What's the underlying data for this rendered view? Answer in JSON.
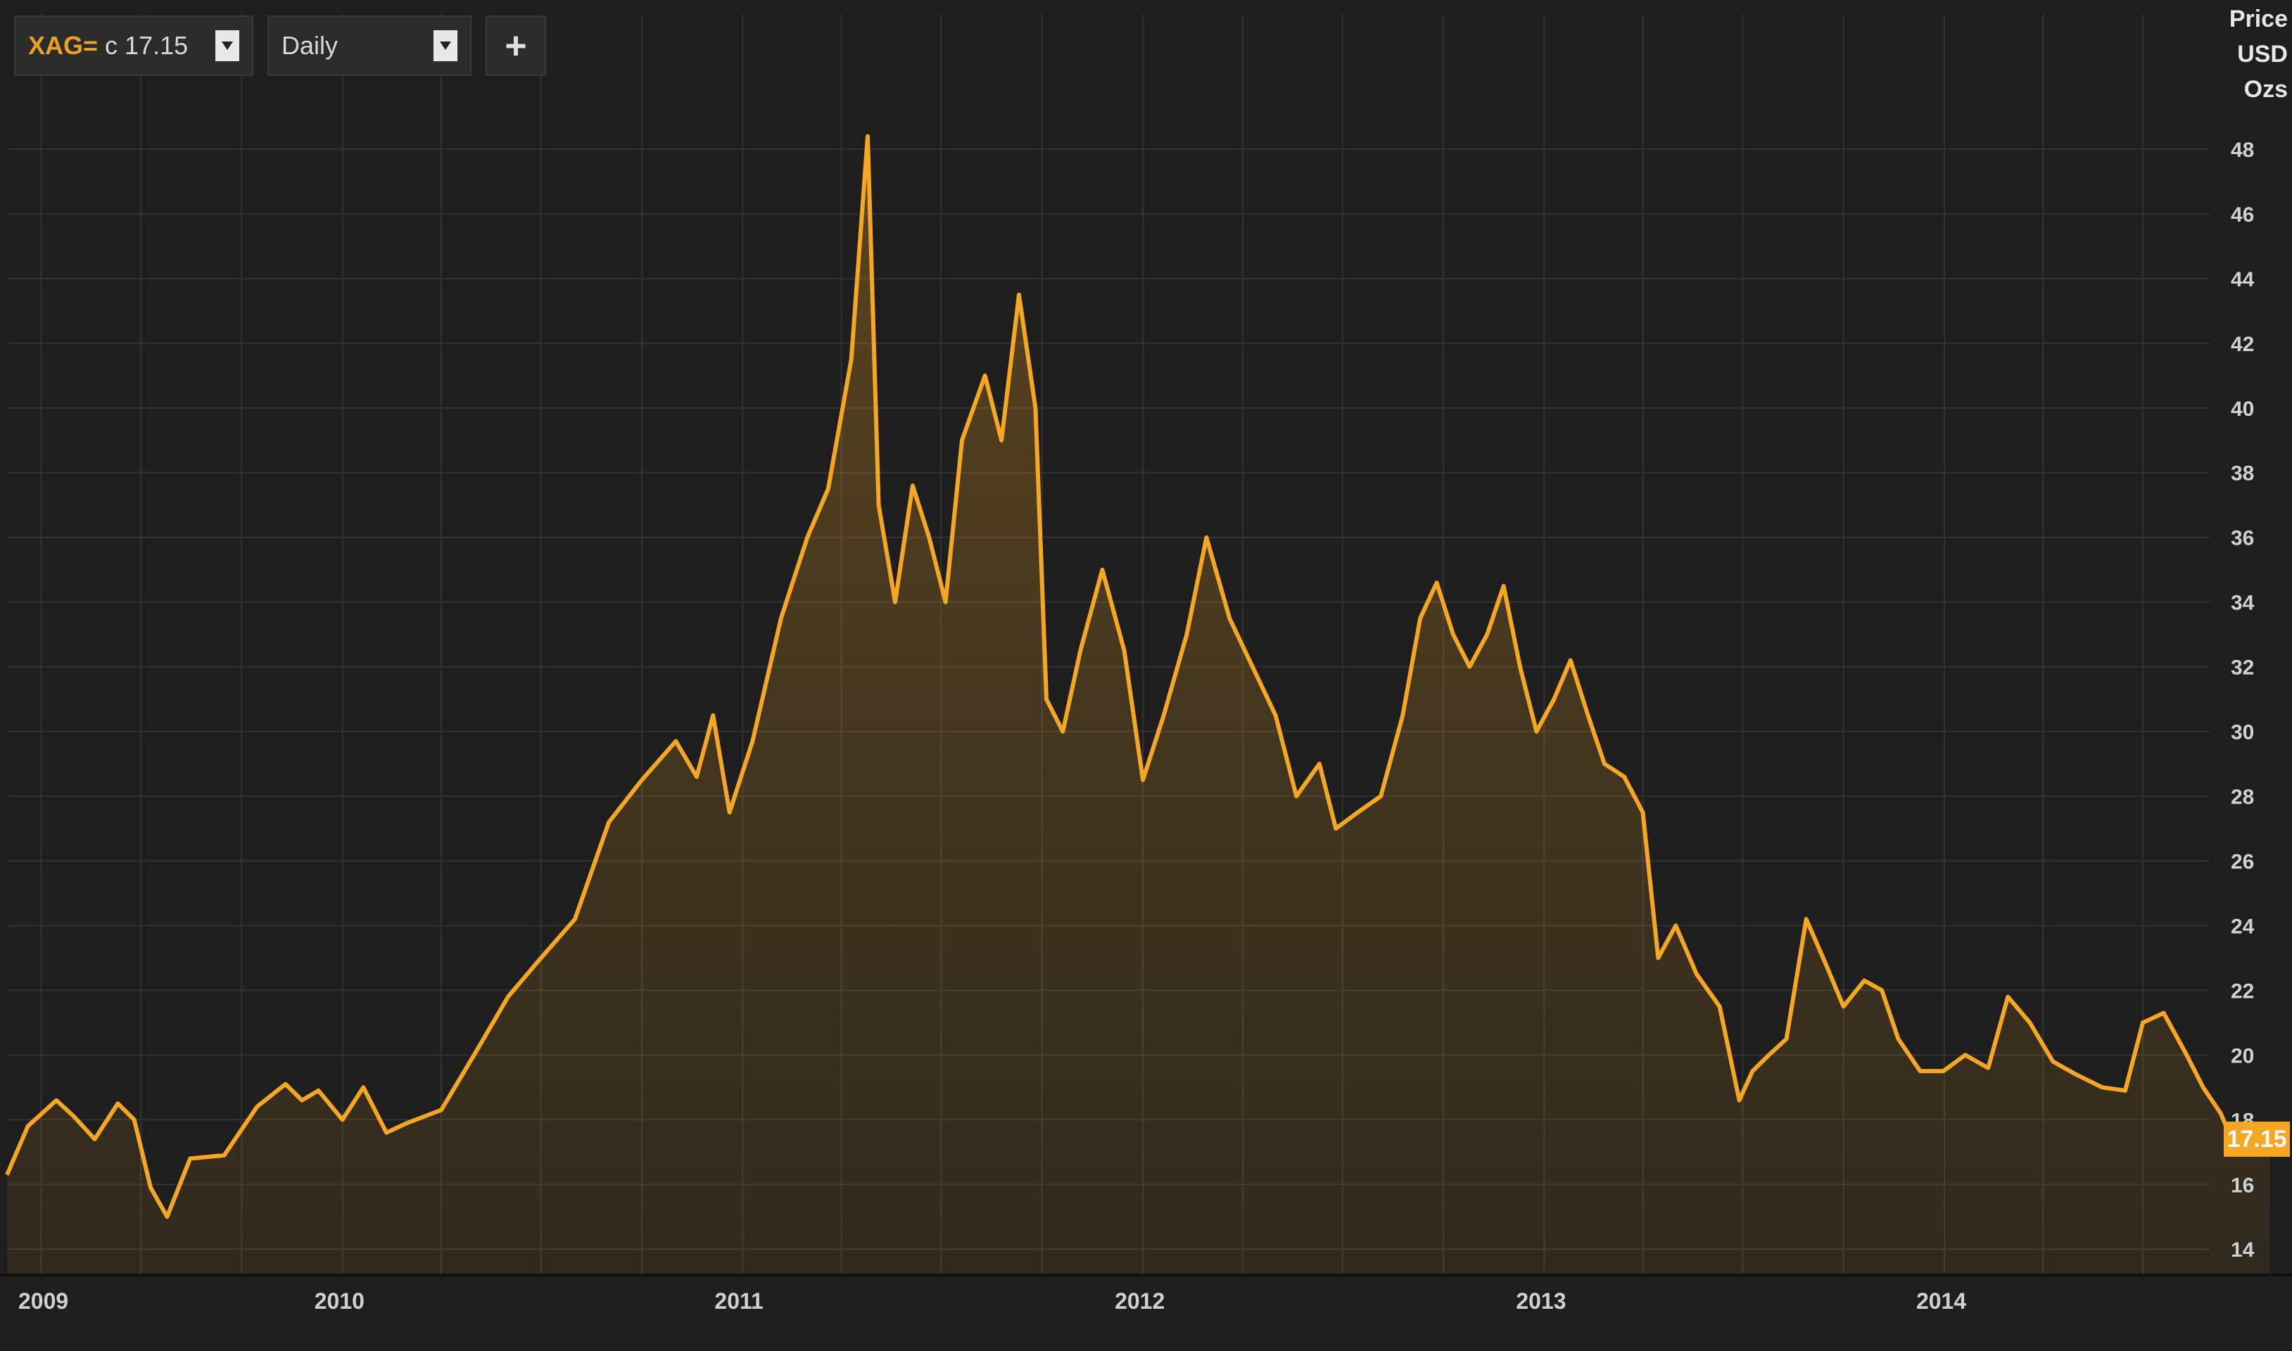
{
  "toolbar": {
    "instrument": "XAG=",
    "instrument_value": "c 17.15",
    "interval": "Daily",
    "add_label": "+"
  },
  "axis_unit": [
    "Price",
    "USD",
    "Ozs"
  ],
  "last_price_label": "17.15",
  "colors": {
    "line": "#f5a623",
    "background": "#1e1e1e",
    "grid": "#3a3a3a",
    "last_tag": "#f5a623"
  },
  "chart_data": {
    "type": "area",
    "title": "",
    "xlabel": "",
    "ylabel": "Price USD Ozs",
    "x_tick_labels": [
      "2009",
      "2010",
      "2011",
      "2012",
      "2013",
      "2014"
    ],
    "y_tick_labels": [
      14,
      16,
      18,
      20,
      22,
      24,
      26,
      28,
      30,
      32,
      34,
      36,
      38,
      40,
      42,
      44,
      46,
      48
    ],
    "xlim": [
      "2009-03-01",
      "2014-08-31"
    ],
    "ylim": [
      13.2,
      50
    ],
    "grid": true,
    "legend": "none",
    "series": [
      {
        "name": "XAG=",
        "points": [
          [
            "2009-03-01",
            16.3
          ],
          [
            "2009-03-20",
            17.8
          ],
          [
            "2009-04-15",
            18.6
          ],
          [
            "2009-05-01",
            18.1
          ],
          [
            "2009-05-20",
            17.4
          ],
          [
            "2009-06-10",
            18.5
          ],
          [
            "2009-06-25",
            18.0
          ],
          [
            "2009-07-10",
            15.9
          ],
          [
            "2009-07-25",
            15.0
          ],
          [
            "2009-08-15",
            16.8
          ],
          [
            "2009-09-15",
            16.9
          ],
          [
            "2009-10-15",
            18.4
          ],
          [
            "2009-11-10",
            19.1
          ],
          [
            "2009-11-25",
            18.6
          ],
          [
            "2009-12-10",
            18.9
          ],
          [
            "2010-01-01",
            18.0
          ],
          [
            "2010-01-20",
            19.0
          ],
          [
            "2010-02-10",
            17.6
          ],
          [
            "2010-03-01",
            17.9
          ],
          [
            "2010-04-01",
            18.3
          ],
          [
            "2010-05-01",
            20.0
          ],
          [
            "2010-06-01",
            21.8
          ],
          [
            "2010-07-01",
            23.0
          ],
          [
            "2010-08-01",
            24.2
          ],
          [
            "2010-09-01",
            27.2
          ],
          [
            "2010-10-01",
            28.5
          ],
          [
            "2010-11-01",
            29.7
          ],
          [
            "2010-11-20",
            28.6
          ],
          [
            "2010-12-05",
            30.5
          ],
          [
            "2010-12-20",
            27.5
          ],
          [
            "2011-01-10",
            29.7
          ],
          [
            "2011-02-05",
            33.5
          ],
          [
            "2011-03-01",
            36.0
          ],
          [
            "2011-03-20",
            37.5
          ],
          [
            "2011-04-10",
            41.5
          ],
          [
            "2011-04-25",
            48.4
          ],
          [
            "2011-05-05",
            37.0
          ],
          [
            "2011-05-20",
            34.0
          ],
          [
            "2011-06-05",
            37.6
          ],
          [
            "2011-06-20",
            36.0
          ],
          [
            "2011-07-05",
            34.0
          ],
          [
            "2011-07-20",
            39.0
          ],
          [
            "2011-08-10",
            41.0
          ],
          [
            "2011-08-25",
            39.0
          ],
          [
            "2011-09-10",
            43.5
          ],
          [
            "2011-09-25",
            40.0
          ],
          [
            "2011-10-05",
            31.0
          ],
          [
            "2011-10-20",
            30.0
          ],
          [
            "2011-11-05",
            32.5
          ],
          [
            "2011-11-25",
            35.0
          ],
          [
            "2011-12-15",
            32.5
          ],
          [
            "2012-01-01",
            28.5
          ],
          [
            "2012-01-20",
            30.5
          ],
          [
            "2012-02-10",
            33.0
          ],
          [
            "2012-02-28",
            36.0
          ],
          [
            "2012-03-20",
            33.5
          ],
          [
            "2012-04-10",
            32.0
          ],
          [
            "2012-05-01",
            30.5
          ],
          [
            "2012-05-20",
            28.0
          ],
          [
            "2012-06-10",
            29.0
          ],
          [
            "2012-06-25",
            27.0
          ],
          [
            "2012-07-15",
            27.5
          ],
          [
            "2012-08-05",
            28.0
          ],
          [
            "2012-08-25",
            30.5
          ],
          [
            "2012-09-10",
            33.5
          ],
          [
            "2012-09-25",
            34.6
          ],
          [
            "2012-10-10",
            33.0
          ],
          [
            "2012-10-25",
            32.0
          ],
          [
            "2012-11-10",
            33.0
          ],
          [
            "2012-11-25",
            34.5
          ],
          [
            "2012-12-10",
            32.0
          ],
          [
            "2012-12-25",
            30.0
          ],
          [
            "2013-01-10",
            31.0
          ],
          [
            "2013-01-25",
            32.2
          ],
          [
            "2013-02-10",
            30.5
          ],
          [
            "2013-02-25",
            29.0
          ],
          [
            "2013-03-15",
            28.6
          ],
          [
            "2013-04-01",
            27.5
          ],
          [
            "2013-04-15",
            23.0
          ],
          [
            "2013-05-01",
            24.0
          ],
          [
            "2013-05-20",
            22.5
          ],
          [
            "2013-06-10",
            21.5
          ],
          [
            "2013-06-28",
            18.6
          ],
          [
            "2013-07-10",
            19.5
          ],
          [
            "2013-07-25",
            20.0
          ],
          [
            "2013-08-10",
            20.5
          ],
          [
            "2013-08-28",
            24.2
          ],
          [
            "2013-09-15",
            22.8
          ],
          [
            "2013-10-01",
            21.5
          ],
          [
            "2013-10-20",
            22.3
          ],
          [
            "2013-11-05",
            22.0
          ],
          [
            "2013-11-20",
            20.5
          ],
          [
            "2013-12-10",
            19.5
          ],
          [
            "2013-12-31",
            19.5
          ],
          [
            "2014-01-20",
            20.0
          ],
          [
            "2014-02-10",
            19.6
          ],
          [
            "2014-02-28",
            21.8
          ],
          [
            "2014-03-20",
            21.0
          ],
          [
            "2014-04-10",
            19.8
          ],
          [
            "2014-05-01",
            19.4
          ],
          [
            "2014-05-25",
            19.0
          ],
          [
            "2014-06-15",
            18.9
          ],
          [
            "2014-07-01",
            21.0
          ],
          [
            "2014-07-20",
            21.3
          ],
          [
            "2014-08-10",
            20.0
          ],
          [
            "2014-08-25",
            19.0
          ],
          [
            "2014-09-10",
            18.2
          ],
          [
            "2014-09-25",
            17.0
          ],
          [
            "2014-10-10",
            17.4
          ],
          [
            "2014-10-25",
            17.15
          ]
        ]
      }
    ]
  }
}
